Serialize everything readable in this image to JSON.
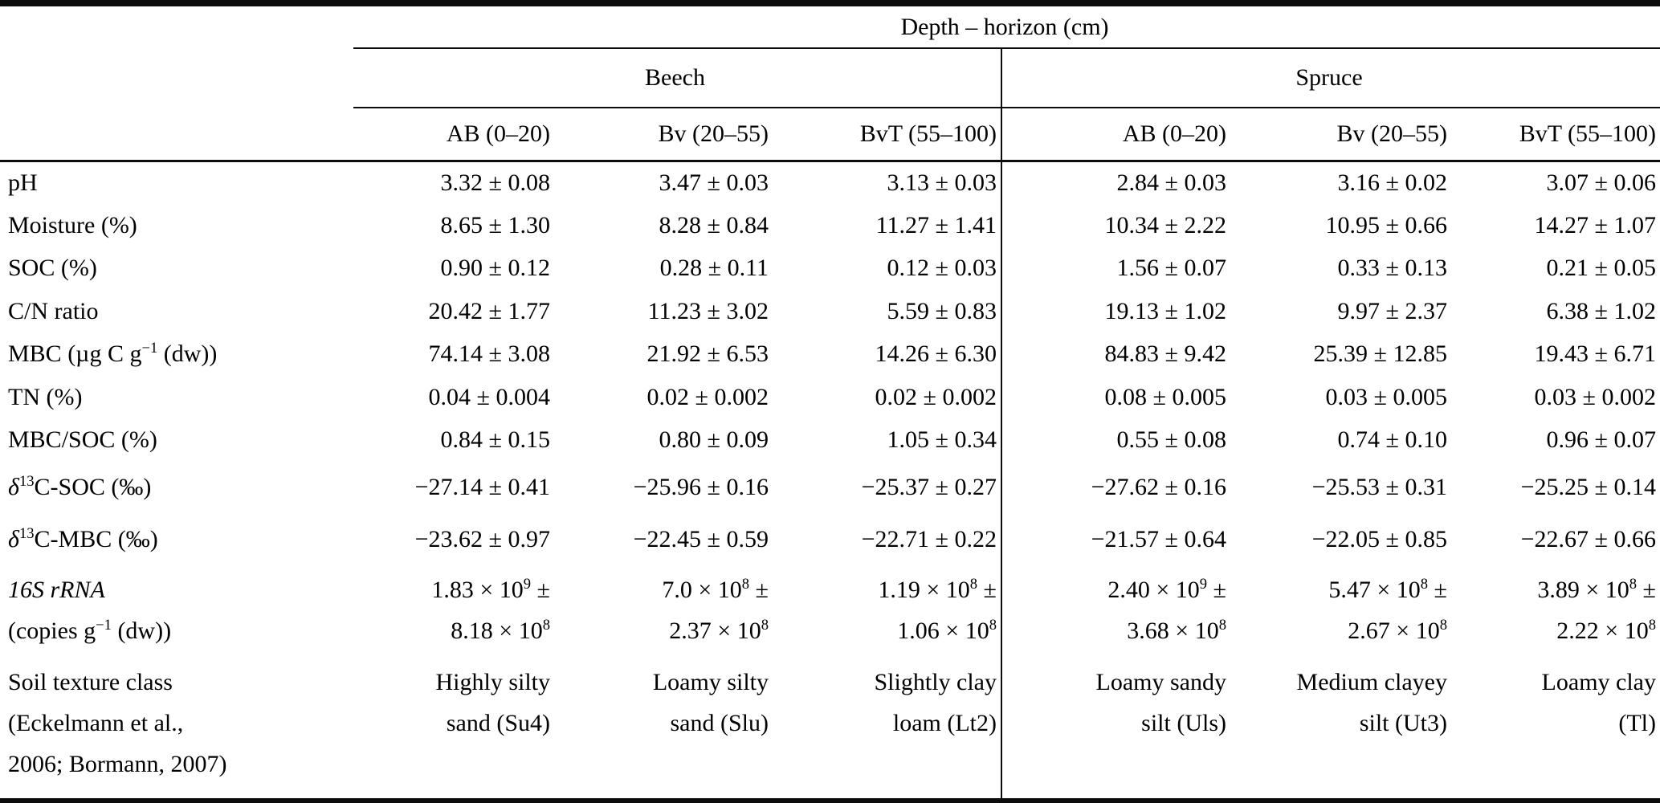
{
  "table": {
    "top_header": "Depth – horizon (cm)",
    "groups": [
      {
        "label": "Beech"
      },
      {
        "label": "Spruce"
      }
    ],
    "columns": [
      "AB (0–20)",
      "Bv (20–55)",
      "BvT (55–100)",
      "AB (0–20)",
      "Bv (20–55)",
      "BvT (55–100)"
    ],
    "rows": [
      {
        "label": "pH",
        "values": [
          "3.32 ± 0.08",
          "3.47 ± 0.03",
          "3.13 ± 0.03",
          "2.84 ± 0.03",
          "3.16 ± 0.02",
          "3.07 ± 0.06"
        ]
      },
      {
        "label": "Moisture (%)",
        "values": [
          "8.65 ± 1.30",
          "8.28 ± 0.84",
          "11.27 ± 1.41",
          "10.34 ± 2.22",
          "10.95 ± 0.66",
          "14.27 ± 1.07"
        ]
      },
      {
        "label": "SOC (%)",
        "values": [
          "0.90 ± 0.12",
          "0.28 ± 0.11",
          "0.12 ± 0.03",
          "1.56 ± 0.07",
          "0.33 ± 0.13",
          "0.21 ± 0.05"
        ]
      },
      {
        "label": "C/N ratio",
        "values": [
          "20.42 ± 1.77",
          "11.23 ± 3.02",
          "5.59 ± 0.83",
          "19.13 ± 1.02",
          "9.97 ± 2.37",
          "6.38 ± 1.02"
        ]
      },
      {
        "label": "MBC (µg C g^−1^ (dw))",
        "values": [
          "74.14 ± 3.08",
          "21.92 ± 6.53",
          "14.26 ± 6.30",
          "84.83 ± 9.42",
          "25.39 ± 12.85",
          "19.43 ± 6.71"
        ]
      },
      {
        "label": "TN (%)",
        "values": [
          "0.04 ± 0.004",
          "0.02 ± 0.002",
          "0.02 ± 0.002",
          "0.08 ± 0.005",
          "0.03 ± 0.005",
          "0.03 ± 0.002"
        ]
      },
      {
        "label": "MBC/SOC (%)",
        "values": [
          "0.84 ± 0.15",
          "0.80 ± 0.09",
          "1.05 ± 0.34",
          "0.55 ± 0.08",
          "0.74 ± 0.10",
          "0.96 ± 0.07"
        ]
      },
      {
        "label": "*δ*^13^C-SOC (‰)",
        "values": [
          "−27.14 ± 0.41",
          "−25.96 ± 0.16",
          "−25.37 ± 0.27",
          "−27.62 ± 0.16",
          "−25.53 ± 0.31",
          "−25.25 ± 0.14"
        ]
      },
      {
        "label": "*δ*^13^C-MBC (‰)",
        "values": [
          "−23.62 ± 0.97",
          "−22.45 ± 0.59",
          "−22.71 ± 0.22",
          "−21.57 ± 0.64",
          "−22.05 ± 0.85",
          "−22.67 ± 0.66"
        ]
      },
      {
        "label": "*16S rRNA*\n(copies g^−1^ (dw))",
        "values": [
          "1.83 × 10^9^ ±\n8.18 × 10^8^",
          "7.0 × 10^8^ ±\n2.37 × 10^8^",
          "1.19 × 10^8^ ±\n1.06 × 10^8^",
          "2.40 × 10^9^ ±\n3.68 × 10^8^",
          "5.47 × 10^8^ ±\n2.67 × 10^8^",
          "3.89 × 10^8^ ±\n2.22 × 10^8^"
        ]
      },
      {
        "label": "Soil texture class\n(Eckelmann et al.,\n2006; Bormann, 2007)",
        "values": [
          "Highly silty\nsand (Su4)",
          "Loamy silty\nsand (Slu)",
          "Slightly clay\nloam (Lt2)",
          "Loamy sandy\nsilt (Uls)",
          "Medium clayey\nsilt (Ut3)",
          "Loamy clay\n(Tl)"
        ]
      }
    ]
  }
}
